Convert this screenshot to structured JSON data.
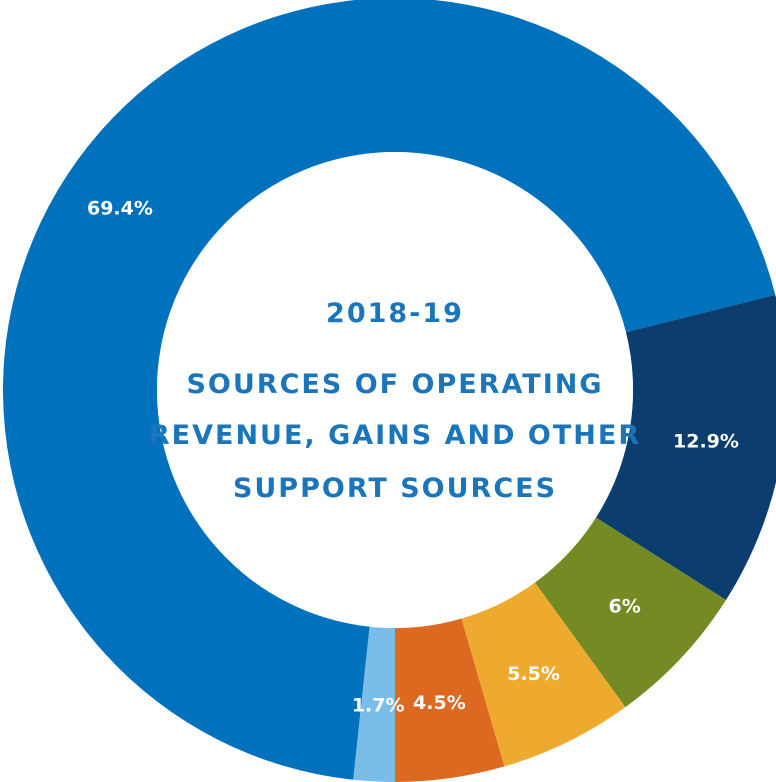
{
  "chart_data": {
    "type": "pie",
    "title_lines": [
      "2018-19",
      "SOURCES OF OPERATING",
      "REVENUE, GAINS AND OTHER",
      "SUPPORT SOURCES"
    ],
    "slices": [
      {
        "value": 69.4,
        "label": "69.4%",
        "color": "#0071bc"
      },
      {
        "value": 12.9,
        "label": "12.9%",
        "color": "#0b3e6f"
      },
      {
        "value": 6,
        "label": "6%",
        "color": "#738b22"
      },
      {
        "value": 5.5,
        "label": "5.5%",
        "color": "#eeaa2f"
      },
      {
        "value": 4.5,
        "label": "4.5%",
        "color": "#dd6921"
      },
      {
        "value": 1.7,
        "label": "1.7%",
        "color": "#7abde8"
      }
    ]
  }
}
